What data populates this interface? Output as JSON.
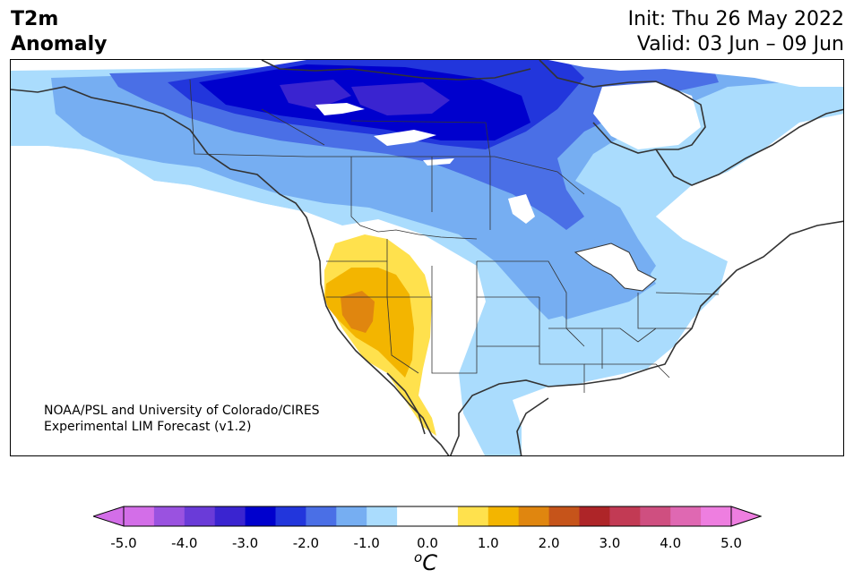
{
  "header": {
    "variable": "T2m",
    "subtitle": "Anomaly",
    "init_text": "Init: Thu 26 May 2022",
    "valid_text": "Valid: 03 Jun – 09 Jun"
  },
  "credit": {
    "line1": "NOAA/PSL and University of Colorado/CIRES",
    "line2": "Experimental LIM Forecast (v1.2)"
  },
  "colorbar": {
    "unit_base": "C",
    "unit_sup": "o",
    "ticks": [
      "-5.0",
      "-4.0",
      "-3.0",
      "-2.0",
      "-1.0",
      "0.0",
      "1.0",
      "2.0",
      "3.0",
      "4.0",
      "5.0"
    ],
    "colors": [
      "#d36ee8",
      "#9a52e0",
      "#6a3bd8",
      "#3a24d0",
      "#0000cd",
      "#2236dc",
      "#4a6fe6",
      "#76aef2",
      "#aadcfd",
      "#ffffff",
      "#ffffff",
      "#ffe14d",
      "#f3b500",
      "#e0860f",
      "#c6541a",
      "#ae2528",
      "#c23a54",
      "#cf4f80",
      "#df68b2",
      "#ee7ee0"
    ],
    "extend_low_color": "#d36ee8",
    "extend_high_color": "#ee7ee0"
  },
  "map": {
    "region": "North America",
    "anomaly_palette": {
      "cold_1": "#aadcfd",
      "cold_2": "#76aef2",
      "cold_3": "#4a6fe6",
      "cold_4": "#2236dc",
      "cold_5": "#0000cd",
      "cold_6": "#3a24d0",
      "warm_1": "#ffe14d",
      "warm_2": "#f3b500",
      "warm_3": "#e0860f"
    }
  }
}
